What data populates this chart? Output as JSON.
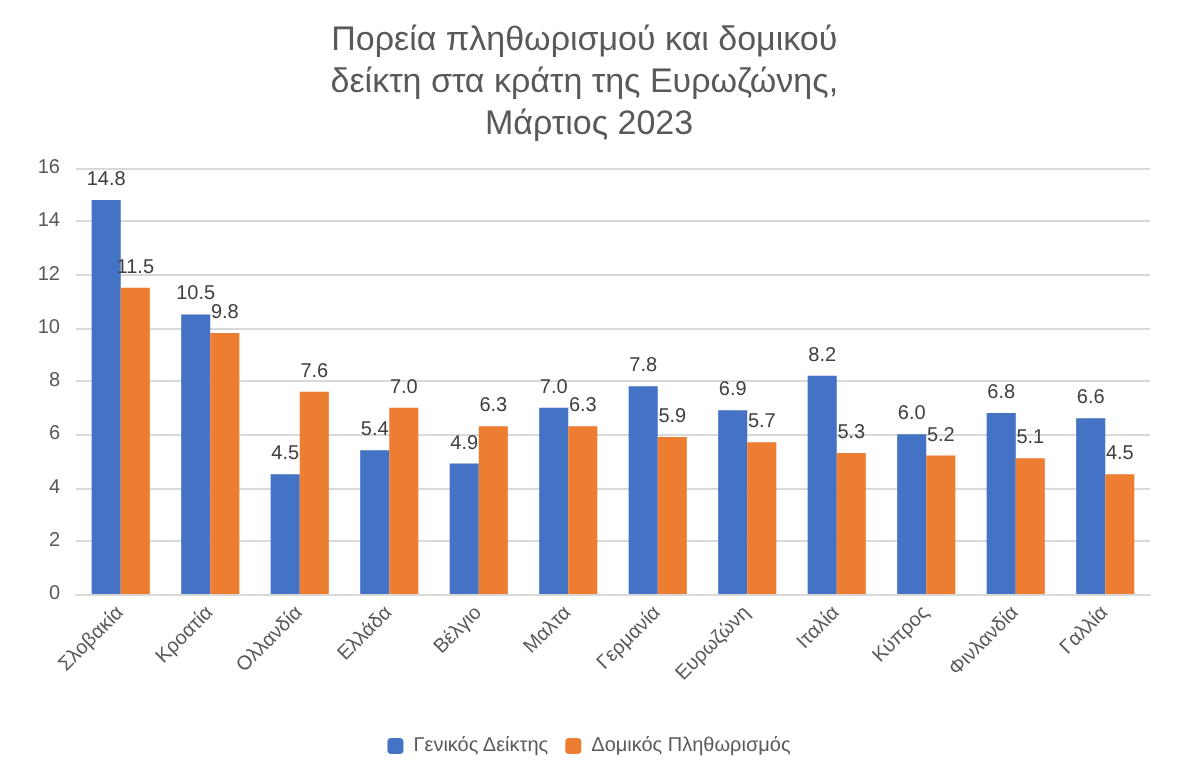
{
  "chart_data": {
    "type": "bar",
    "title": "Πορεία πληθωρισμού και δομικού δείκτη στα κράτη της Ευρωζώνης, Μάρτιος 2023",
    "categories": [
      "Σλοβακία",
      "Κροατία",
      "Ολλανδία",
      "Ελλάδα",
      "Βέλγιο",
      "Μαλτα",
      "Γερμανία",
      "Ευρωζώνη",
      "Ιταλία",
      "Κύπρος",
      "Φινλανδία",
      "Γαλλία"
    ],
    "series": [
      {
        "name": "Γενικός Δείκτης",
        "color": "#4472c4",
        "values": [
          14.8,
          10.5,
          4.5,
          5.4,
          4.9,
          7.0,
          7.8,
          6.9,
          8.2,
          6.0,
          6.8,
          6.6
        ],
        "value_labels": [
          "14.8",
          "10.5",
          "4.5",
          "5.4",
          "4.9",
          "7.0",
          "7.8",
          "6.9",
          "8.2",
          "6.0",
          "6.8",
          "6.6"
        ]
      },
      {
        "name": "Δομικός Πληθωρισμός",
        "color": "#ed7d31",
        "values": [
          11.5,
          9.8,
          7.6,
          7.0,
          6.3,
          6.3,
          5.9,
          5.7,
          5.3,
          5.2,
          5.1,
          4.5
        ],
        "value_labels": [
          "11.5",
          "9.8",
          "7.6",
          "7.0",
          "6.3",
          "6.3",
          "5.9",
          "5.7",
          "5.3",
          "5.2",
          "5.1",
          "4.5"
        ]
      }
    ],
    "ylim": [
      0,
      16
    ],
    "yticks": [
      0,
      2,
      4,
      6,
      8,
      10,
      12,
      14,
      16
    ],
    "grid": "y",
    "legend": "bottom"
  }
}
